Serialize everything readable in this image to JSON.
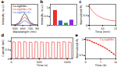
{
  "chart_data": [
    {
      "type": "line",
      "title": "a",
      "xlabel": "Wavelength (nm)",
      "ylabel": "Intensity (a.u.)",
      "x": [
        450,
        500,
        550,
        575,
        600,
        625,
        650,
        675,
        700,
        750,
        800
      ],
      "xlim": [
        450,
        800
      ],
      "xticks": [
        500,
        600,
        700,
        800
      ],
      "ylim": [
        0,
        1.8
      ],
      "yticks": [],
      "tick_labels": "x",
      "legend": "top-left",
      "series": [
        {
          "name": "Cs₂AgBiBr₆",
          "color": "#000000",
          "values": [
            0.02,
            0.05,
            0.2,
            0.45,
            0.8,
            1.0,
            0.85,
            0.5,
            0.25,
            0.07,
            0.02
          ]
        },
        {
          "name": "Cs₂AgBiBr₆:Yb",
          "color": "#e8322b",
          "values": [
            0.02,
            0.04,
            0.15,
            0.3,
            0.55,
            0.7,
            0.6,
            0.35,
            0.18,
            0.05,
            0.02
          ]
        },
        {
          "name": "Cs₂AgBiBr₆:Er",
          "color": "#2f5fd0",
          "values": [
            0.01,
            0.03,
            0.08,
            0.15,
            0.3,
            0.4,
            0.33,
            0.2,
            0.1,
            0.03,
            0.01
          ]
        }
      ]
    },
    {
      "type": "bar",
      "title": "b",
      "ylabel": "Intensity (a.u.)",
      "categories": [
        null,
        null,
        null,
        null
      ],
      "values": [
        0.85,
        0.25,
        0.12,
        0.3
      ],
      "colors": [
        "#e8322b",
        "#2f5fd0",
        "#2e9e3e",
        "#8a2be2"
      ],
      "ylim": [
        0,
        1.2
      ],
      "yticks": [
        0,
        0.5,
        1
      ]
    },
    {
      "type": "line",
      "title": "c",
      "xlabel": "Time (min)",
      "ylabel": "Normalized PL",
      "x": [
        0,
        2,
        4,
        6,
        8,
        10,
        12,
        14,
        16,
        18,
        20
      ],
      "xlim": [
        0,
        20
      ],
      "xticks": [
        0,
        10,
        20
      ],
      "ylim": [
        0,
        1.1
      ],
      "yticks": [
        0,
        0.5,
        1
      ],
      "series": [
        {
          "name": null,
          "color": "#e8322b",
          "values": [
            1,
            0.78,
            0.63,
            0.52,
            0.44,
            0.38,
            0.33,
            0.29,
            0.26,
            0.24,
            0.22
          ]
        }
      ]
    },
    {
      "type": "line",
      "title": "d",
      "xlabel": "Time (s)",
      "ylabel": "Current (nA)",
      "x": [
        0,
        20,
        22,
        70,
        72,
        120,
        122,
        170,
        172,
        220,
        222,
        270,
        272,
        320,
        322,
        370,
        372,
        420,
        422,
        470,
        472,
        520,
        522,
        570,
        572,
        620,
        622,
        670,
        672,
        720,
        722,
        770,
        772,
        820,
        822,
        870,
        872,
        920,
        922,
        970,
        972,
        1020,
        1022,
        1070,
        1072,
        1100
      ],
      "xlim": [
        0,
        1100
      ],
      "xticks": [
        0,
        500,
        1000
      ],
      "ylim": [
        0,
        1.2
      ],
      "yticks": [
        0,
        0.5,
        1
      ],
      "series": [
        {
          "name": null,
          "color": "#e8322b",
          "values": [
            0.05,
            0.05,
            0.98,
            0.95,
            0.05,
            0.05,
            0.97,
            0.94,
            0.05,
            0.05,
            0.99,
            0.95,
            0.05,
            0.05,
            0.96,
            0.93,
            0.05,
            0.05,
            0.98,
            0.95,
            0.05,
            0.05,
            0.97,
            0.94,
            0.05,
            0.05,
            0.95,
            0.92,
            0.05,
            0.05,
            0.97,
            0.94,
            0.05,
            0.05,
            0.96,
            0.93,
            0.05,
            0.05,
            0.98,
            0.95,
            0.05,
            0.05,
            0.96,
            0.93,
            0.05,
            0.05
          ]
        }
      ]
    },
    {
      "type": "line",
      "title": "e",
      "xlabel": "Time (d)",
      "ylabel": "Normalized PL",
      "x": [
        0,
        1,
        2,
        3,
        4,
        5,
        6,
        7,
        8,
        9,
        10,
        11,
        12,
        13,
        14
      ],
      "xlim": [
        0,
        14
      ],
      "xticks": [
        0,
        7,
        14
      ],
      "ylim": [
        0.4,
        1.05
      ],
      "yticks": [
        0.5,
        1
      ],
      "legend": "top-right",
      "series": [
        {
          "name": "Cs₂AgBiBr₆",
          "color": "#e8322b",
          "marker": "circle",
          "values": [
            1.0,
            0.98,
            0.97,
            0.93,
            0.9,
            0.88,
            0.84,
            0.81,
            0.78,
            0.74,
            0.7,
            0.65,
            0.6,
            0.55,
            0.5
          ]
        }
      ]
    }
  ]
}
